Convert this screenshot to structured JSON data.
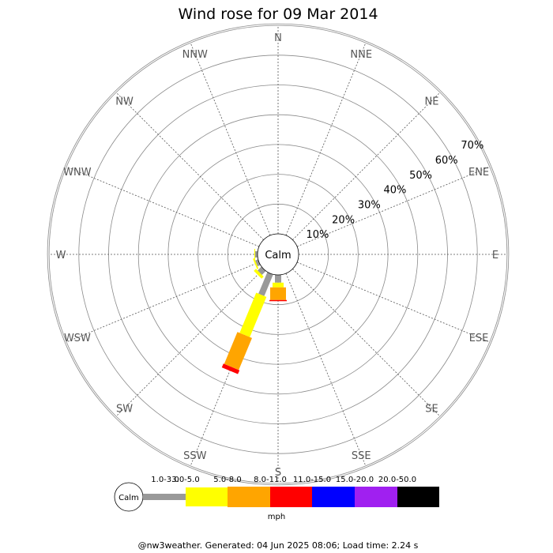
{
  "chart_data": {
    "type": "wind-rose",
    "title": "Wind rose for 09 Mar 2014",
    "directions": [
      "N",
      "NNE",
      "NE",
      "ENE",
      "E",
      "ESE",
      "SE",
      "SSE",
      "S",
      "SSW",
      "SW",
      "WSW",
      "W",
      "WNW",
      "NW",
      "NNW"
    ],
    "radial_ticks": [
      "10%",
      "20%",
      "30%",
      "40%",
      "50%",
      "60%",
      "70%"
    ],
    "rmax_percent": 70,
    "calm_label": "Calm",
    "bins": [
      {
        "label": "1.0-3.0",
        "color": "#999999"
      },
      {
        "label": "3.0-5.0",
        "color": "#ffff00"
      },
      {
        "label": "5.0-8.0",
        "color": "#ffa500"
      },
      {
        "label": "8.0-11.0",
        "color": "#ff0000"
      },
      {
        "label": "11.0-15.0",
        "color": "#0000ff"
      },
      {
        "label": "15.0-20.0",
        "color": "#a020f0"
      },
      {
        "label": "20.0-50.0",
        "color": "#000000"
      }
    ],
    "series": [
      {
        "direction": "S",
        "values": [
          2.6,
          1.6,
          4.2,
          0.4,
          0,
          0,
          0
        ]
      },
      {
        "direction": "SSW",
        "values": [
          7.8,
          14.6,
          11.6,
          1.4,
          0,
          0,
          0
        ]
      },
      {
        "direction": "SW",
        "values": [
          1.8,
          1.0,
          0,
          0,
          0,
          0,
          0
        ]
      },
      {
        "direction": "WSW",
        "values": [
          1.0,
          0.5,
          0,
          0,
          0,
          0,
          0
        ]
      },
      {
        "direction": "W",
        "values": [
          0.8,
          0.3,
          0,
          0,
          0,
          0,
          0
        ]
      }
    ],
    "unit_label": "mph"
  },
  "footer": "@nw3weather. Generated: 04 Jun 2025 08:06; Load time: 2.24 s"
}
